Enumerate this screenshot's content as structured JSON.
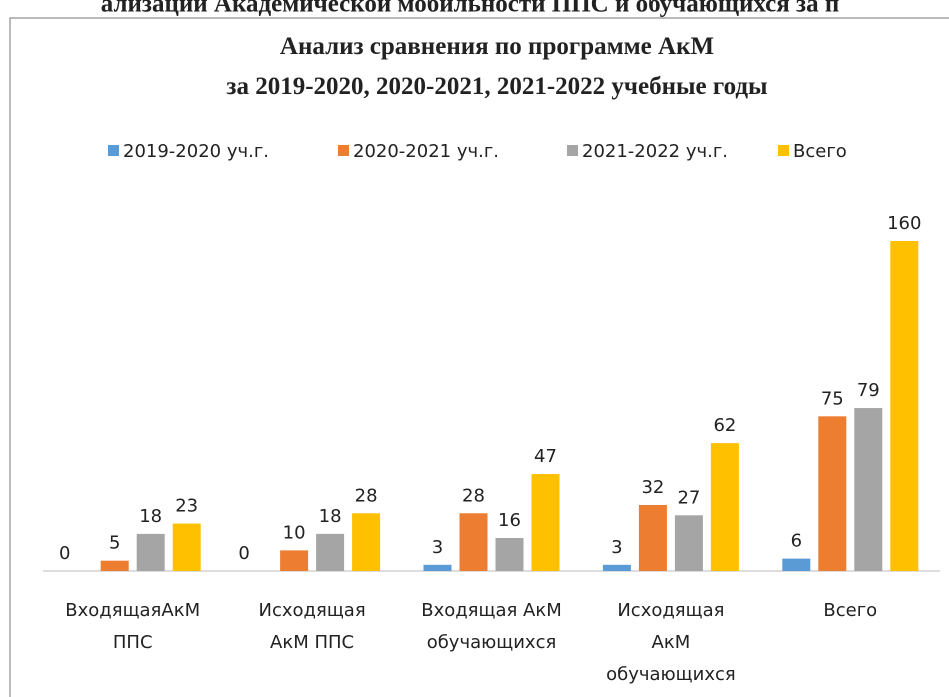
{
  "header": "ализации Академической мобильности ППС и обучающихся за п",
  "chart_data": {
    "type": "bar",
    "title": [
      "Анализ сравнения по программе АкМ",
      "за 2019-2020, 2020-2021, 2021-2022 учебные годы"
    ],
    "categories": [
      "ВходящаяАкМ\nППС",
      "Исходящая\nАкМ ППС",
      "Входящая АкМ\nобучающихся",
      "Исходящая\nАкМ\nобучающихся",
      "Всего"
    ],
    "series": [
      {
        "name": "2019-2020 уч.г.",
        "color": "#5b9bd5",
        "values": [
          0,
          0,
          3,
          3,
          6
        ]
      },
      {
        "name": "2020-2021 уч.г.",
        "color": "#ed7d31",
        "values": [
          5,
          10,
          28,
          32,
          75
        ]
      },
      {
        "name": "2021-2022 уч.г.",
        "color": "#a5a5a5",
        "values": [
          18,
          18,
          16,
          27,
          79
        ]
      },
      {
        "name": "Всего",
        "color": "#ffc000",
        "values": [
          23,
          28,
          47,
          62,
          160
        ]
      }
    ],
    "ylim": [
      0,
      160
    ],
    "legend": "top",
    "grid": false
  }
}
